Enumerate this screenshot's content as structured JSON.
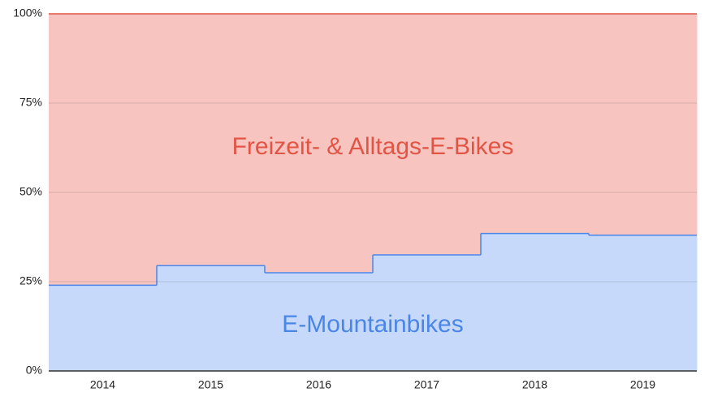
{
  "chart_data": {
    "type": "stepped_area_stacked",
    "categories": [
      "2014",
      "2015",
      "2016",
      "2017",
      "2018",
      "2019"
    ],
    "series": [
      {
        "name": "E-Mountainbikes",
        "color": "#4a86e8",
        "fill": "#c6d9fa",
        "values": [
          24,
          29.5,
          27.5,
          32.5,
          38.5,
          38
        ]
      },
      {
        "name": "Freizeit- & Alltags-E-Bikes",
        "color": "#e05545",
        "fill": "#f8c4c0",
        "values": [
          76,
          70.5,
          72.5,
          67.5,
          61.5,
          62
        ]
      }
    ],
    "ylim": [
      0,
      100
    ],
    "yticks": [
      {
        "value": 0,
        "label": "0%"
      },
      {
        "value": 25,
        "label": "25%"
      },
      {
        "value": 50,
        "label": "50%"
      },
      {
        "value": 75,
        "label": "75%"
      },
      {
        "value": 100,
        "label": "100%"
      }
    ],
    "grid": true
  }
}
